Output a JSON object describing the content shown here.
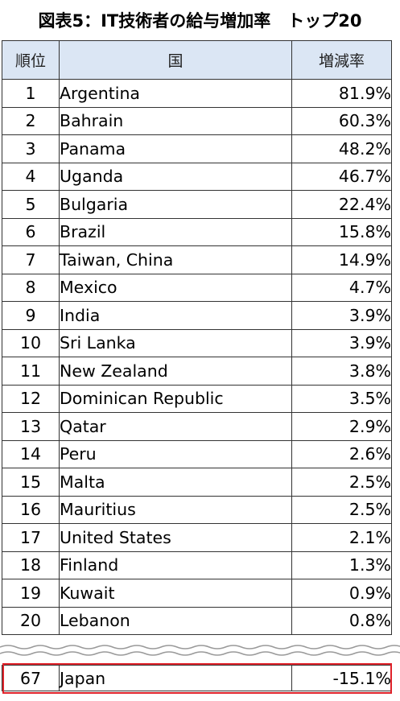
{
  "title": "図表5：IT技術者の給与増加率　トップ20",
  "chart_data": {
    "type": "table",
    "columns": [
      "順位",
      "国",
      "増減率"
    ],
    "rows": [
      {
        "rank": "1",
        "country": "Argentina",
        "change": "81.9%"
      },
      {
        "rank": "2",
        "country": "Bahrain",
        "change": "60.3%"
      },
      {
        "rank": "3",
        "country": "Panama",
        "change": "48.2%"
      },
      {
        "rank": "4",
        "country": "Uganda",
        "change": "46.7%"
      },
      {
        "rank": "5",
        "country": "Bulgaria",
        "change": "22.4%"
      },
      {
        "rank": "6",
        "country": "Brazil",
        "change": "15.8%"
      },
      {
        "rank": "7",
        "country": "Taiwan, China",
        "change": "14.9%"
      },
      {
        "rank": "8",
        "country": "Mexico",
        "change": "4.7%"
      },
      {
        "rank": "9",
        "country": "India",
        "change": "3.9%"
      },
      {
        "rank": "10",
        "country": "Sri Lanka",
        "change": "3.9%"
      },
      {
        "rank": "11",
        "country": "New Zealand",
        "change": "3.8%"
      },
      {
        "rank": "12",
        "country": "Dominican Republic",
        "change": "3.5%"
      },
      {
        "rank": "13",
        "country": "Qatar",
        "change": "2.9%"
      },
      {
        "rank": "14",
        "country": "Peru",
        "change": "2.6%"
      },
      {
        "rank": "15",
        "country": "Malta",
        "change": "2.5%"
      },
      {
        "rank": "16",
        "country": "Mauritius",
        "change": "2.5%"
      },
      {
        "rank": "17",
        "country": "United States",
        "change": "2.1%"
      },
      {
        "rank": "18",
        "country": "Finland",
        "change": "1.3%"
      },
      {
        "rank": "19",
        "country": "Kuwait",
        "change": "0.9%"
      },
      {
        "rank": "20",
        "country": "Lebanon",
        "change": "0.8%"
      }
    ],
    "highlight_row": {
      "rank": "67",
      "country": "Japan",
      "change": "-15.1%"
    },
    "colors": {
      "header_bg": "#dbe6f4",
      "highlight_border": "#e0222a",
      "grid": "#333333"
    }
  }
}
